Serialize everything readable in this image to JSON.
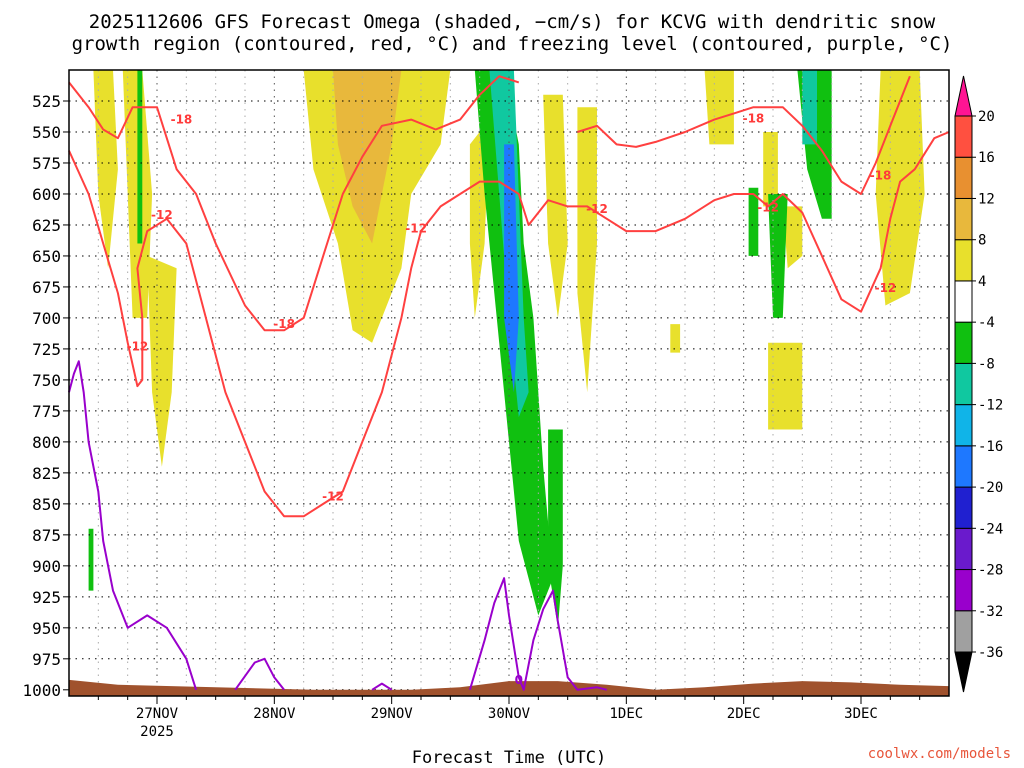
{
  "chart_data": {
    "type": "time-height cross section",
    "title_line1": "2025112606 GFS Forecast Omega (shaded, −cm/s) for KCVG with dendritic snow",
    "title_line2": "growth region (contoured, red, °C) and freezing level (contoured, purple, °C)",
    "xlabel": "Forecast Time (UTC)",
    "credit": "coolwx.com/models",
    "x_range_hours": [
      0,
      180
    ],
    "y_range_hpa": [
      500,
      1005
    ],
    "y_ticks": [
      525,
      550,
      575,
      600,
      625,
      650,
      675,
      700,
      725,
      750,
      775,
      800,
      825,
      850,
      875,
      900,
      925,
      950,
      975,
      1000
    ],
    "x_ticks": [
      {
        "hour": 18,
        "label": "27NOV",
        "sub": "2025"
      },
      {
        "hour": 42,
        "label": "28NOV",
        "sub": ""
      },
      {
        "hour": 66,
        "label": "29NOV",
        "sub": ""
      },
      {
        "hour": 90,
        "label": "30NOV",
        "sub": ""
      },
      {
        "hour": 114,
        "label": "1DEC",
        "sub": ""
      },
      {
        "hour": 138,
        "label": "2DEC",
        "sub": ""
      },
      {
        "hour": 162,
        "label": "3DEC",
        "sub": ""
      }
    ],
    "colorbar": {
      "levels": [
        -36,
        -32,
        -28,
        -24,
        -20,
        -16,
        -12,
        -8,
        -4,
        4,
        8,
        12,
        16,
        20
      ],
      "colors": [
        "#a0a0a0",
        "#9900cc",
        "#6a1acc",
        "#2020d0",
        "#1e78ff",
        "#10b4e8",
        "#10c8a0",
        "#10c010",
        "#ffffff",
        "#e8e02c",
        "#e8b83c",
        "#e89030",
        "#ff5040"
      ],
      "under_color": "#000000",
      "over_color": "#ff1493"
    },
    "dgz_red_contour_labels": [
      {
        "text": "-18",
        "hour": 23,
        "p": 540
      },
      {
        "text": "-12",
        "hour": 19,
        "p": 617
      },
      {
        "text": "-12",
        "hour": 14,
        "p": 723
      },
      {
        "text": "-18",
        "hour": 44,
        "p": 705
      },
      {
        "text": "-12",
        "hour": 71,
        "p": 628
      },
      {
        "text": "-12",
        "hour": 54,
        "p": 844
      },
      {
        "text": "-12",
        "hour": 108,
        "p": 612
      },
      {
        "text": "-18",
        "hour": 140,
        "p": 539
      },
      {
        "text": "-12",
        "hour": 143,
        "p": 611
      },
      {
        "text": "-18",
        "hour": 166,
        "p": 585
      },
      {
        "text": "-12",
        "hour": 167,
        "p": 676
      }
    ],
    "freezing_level_purple_labels": [
      {
        "text": "0",
        "hour": 92,
        "p": 992
      }
    ],
    "omega_shading": [
      {
        "name": "weak ascent",
        "value": 6,
        "regions": [
          [
            [
              5,
              500
            ],
            [
              9,
              500
            ],
            [
              10,
              580
            ],
            [
              8,
              660
            ],
            [
              6,
              600
            ]
          ],
          [
            [
              11,
              500
            ],
            [
              15,
              500
            ],
            [
              17,
              600
            ],
            [
              16,
              700
            ],
            [
              13,
              700
            ],
            [
              12,
              600
            ]
          ],
          [
            [
              16,
              650
            ],
            [
              22,
              660
            ],
            [
              21,
              760
            ],
            [
              19,
              820
            ],
            [
              17,
              760
            ]
          ],
          [
            [
              48,
              500
            ],
            [
              78,
              500
            ],
            [
              76,
              560
            ],
            [
              70,
              600
            ],
            [
              68,
              660
            ],
            [
              62,
              720
            ],
            [
              58,
              710
            ],
            [
              55,
              640
            ],
            [
              50,
              580
            ]
          ],
          [
            [
              82,
              560
            ],
            [
              86,
              540
            ],
            [
              85,
              640
            ],
            [
              83,
              700
            ],
            [
              82,
              640
            ]
          ],
          [
            [
              97,
              520
            ],
            [
              101,
              520
            ],
            [
              102,
              640
            ],
            [
              100,
              700
            ],
            [
              98,
              640
            ]
          ],
          [
            [
              104,
              530
            ],
            [
              108,
              530
            ],
            [
              108,
              640
            ],
            [
              106,
              760
            ],
            [
              104,
              680
            ]
          ],
          [
            [
              130,
              500
            ],
            [
              136,
              500
            ],
            [
              136,
              560
            ],
            [
              131,
              560
            ]
          ],
          [
            [
              142,
              550
            ],
            [
              145,
              550
            ],
            [
              145,
              610
            ],
            [
              142,
              610
            ]
          ],
          [
            [
              146,
              610
            ],
            [
              150,
              610
            ],
            [
              150,
              650
            ],
            [
              147,
              660
            ]
          ],
          [
            [
              123,
              705
            ],
            [
              125,
              705
            ],
            [
              125,
              728
            ],
            [
              123,
              728
            ]
          ],
          [
            [
              143,
              720
            ],
            [
              150,
              720
            ],
            [
              150,
              790
            ],
            [
              143,
              790
            ]
          ],
          [
            [
              166,
              500
            ],
            [
              174,
              500
            ],
            [
              175,
              600
            ],
            [
              172,
              680
            ],
            [
              167,
              690
            ],
            [
              165,
              600
            ]
          ]
        ]
      },
      {
        "name": "moderate ascent",
        "value": 10,
        "regions": [
          [
            [
              54,
              500
            ],
            [
              68,
              500
            ],
            [
              66,
              560
            ],
            [
              62,
              640
            ],
            [
              58,
              610
            ],
            [
              55,
              560
            ]
          ]
        ]
      },
      {
        "name": "weak descent",
        "value": -6,
        "regions": [
          [
            [
              14,
              500
            ],
            [
              15,
              500
            ],
            [
              15,
              640
            ],
            [
              14,
              640
            ]
          ],
          [
            [
              83,
              500
            ],
            [
              89,
              500
            ],
            [
              92,
              560
            ],
            [
              93,
              640
            ],
            [
              95,
              700
            ],
            [
              97,
              820
            ],
            [
              99,
              910
            ],
            [
              96,
              940
            ],
            [
              92,
              880
            ],
            [
              89,
              760
            ],
            [
              87,
              680
            ],
            [
              85,
              600
            ]
          ],
          [
            [
              98,
              790
            ],
            [
              101,
              790
            ],
            [
              101,
              900
            ],
            [
              100,
              950
            ],
            [
              98,
              900
            ]
          ],
          [
            [
              139,
              595
            ],
            [
              141,
              595
            ],
            [
              141,
              650
            ],
            [
              139,
              650
            ]
          ],
          [
            [
              143,
              600
            ],
            [
              147,
              600
            ],
            [
              146,
              700
            ],
            [
              144,
              700
            ]
          ],
          [
            [
              149,
              500
            ],
            [
              156,
              500
            ],
            [
              156,
              620
            ],
            [
              154,
              620
            ],
            [
              151,
              580
            ]
          ],
          [
            [
              4,
              870
            ],
            [
              5,
              870
            ],
            [
              5,
              920
            ],
            [
              4,
              920
            ]
          ]
        ]
      },
      {
        "name": "moderate descent",
        "value": -12,
        "regions": [
          [
            [
              86,
              500
            ],
            [
              91,
              500
            ],
            [
              92,
              600
            ],
            [
              93,
              700
            ],
            [
              94,
              760
            ],
            [
              92,
              780
            ],
            [
              90,
              700
            ],
            [
              88,
              600
            ]
          ],
          [
            [
              150,
              500
            ],
            [
              153,
              500
            ],
            [
              153,
              560
            ],
            [
              150,
              560
            ]
          ]
        ]
      },
      {
        "name": "stronger descent",
        "value": -18,
        "regions": [
          [
            [
              89,
              560
            ],
            [
              91,
              560
            ],
            [
              92,
              700
            ],
            [
              91,
              760
            ],
            [
              89,
              700
            ]
          ]
        ]
      }
    ],
    "dgz_red_contours": [
      [
        [
          0,
          510
        ],
        [
          4,
          530
        ],
        [
          7,
          548
        ],
        [
          10,
          555
        ],
        [
          13,
          530
        ],
        [
          18,
          530
        ],
        [
          22,
          580
        ],
        [
          26,
          600
        ],
        [
          30,
          640
        ],
        [
          36,
          690
        ],
        [
          40,
          710
        ],
        [
          44,
          710
        ],
        [
          48,
          700
        ],
        [
          52,
          650
        ],
        [
          56,
          600
        ],
        [
          60,
          570
        ],
        [
          64,
          545
        ],
        [
          70,
          540
        ],
        [
          75,
          548
        ],
        [
          80,
          540
        ],
        [
          84,
          520
        ],
        [
          88,
          505
        ],
        [
          92,
          510
        ]
      ],
      [
        [
          0,
          565
        ],
        [
          4,
          600
        ],
        [
          7,
          640
        ],
        [
          10,
          680
        ],
        [
          12,
          720
        ],
        [
          14,
          755
        ],
        [
          15,
          750
        ],
        [
          15,
          700
        ],
        [
          14,
          660
        ],
        [
          16,
          630
        ],
        [
          20,
          620
        ],
        [
          24,
          640
        ],
        [
          28,
          700
        ],
        [
          32,
          760
        ],
        [
          36,
          800
        ],
        [
          40,
          840
        ],
        [
          44,
          860
        ],
        [
          48,
          860
        ],
        [
          52,
          850
        ],
        [
          56,
          840
        ],
        [
          60,
          800
        ],
        [
          64,
          760
        ],
        [
          68,
          700
        ],
        [
          70,
          660
        ],
        [
          72,
          630
        ],
        [
          76,
          610
        ],
        [
          80,
          600
        ],
        [
          84,
          590
        ],
        [
          88,
          590
        ],
        [
          92,
          600
        ],
        [
          94,
          625
        ],
        [
          98,
          605
        ],
        [
          102,
          610
        ],
        [
          106,
          610
        ],
        [
          110,
          620
        ],
        [
          114,
          630
        ],
        [
          120,
          630
        ],
        [
          126,
          620
        ],
        [
          132,
          605
        ],
        [
          136,
          600
        ],
        [
          140,
          600
        ],
        [
          143,
          610
        ],
        [
          146,
          600
        ],
        [
          150,
          615
        ],
        [
          154,
          650
        ],
        [
          158,
          685
        ],
        [
          162,
          695
        ],
        [
          166,
          660
        ],
        [
          168,
          620
        ],
        [
          170,
          590
        ],
        [
          173,
          580
        ],
        [
          177,
          555
        ],
        [
          180,
          550
        ]
      ],
      [
        [
          104,
          550
        ],
        [
          108,
          545
        ],
        [
          112,
          560
        ],
        [
          116,
          562
        ],
        [
          120,
          558
        ],
        [
          126,
          550
        ],
        [
          132,
          540
        ],
        [
          136,
          535
        ],
        [
          140,
          530
        ],
        [
          146,
          530
        ],
        [
          150,
          545
        ],
        [
          154,
          565
        ],
        [
          158,
          590
        ],
        [
          162,
          600
        ],
        [
          165,
          575
        ],
        [
          168,
          545
        ],
        [
          170,
          525
        ],
        [
          172,
          505
        ]
      ]
    ],
    "freezing_level_contours": [
      [
        [
          0,
          760
        ],
        [
          1,
          745
        ],
        [
          2,
          735
        ],
        [
          3,
          760
        ],
        [
          4,
          800
        ],
        [
          6,
          840
        ],
        [
          7,
          880
        ],
        [
          9,
          920
        ],
        [
          12,
          950
        ],
        [
          16,
          940
        ],
        [
          20,
          950
        ],
        [
          24,
          975
        ],
        [
          26,
          1000
        ]
      ],
      [
        [
          34,
          1000
        ],
        [
          38,
          978
        ],
        [
          40,
          975
        ],
        [
          42,
          990
        ],
        [
          44,
          1000
        ]
      ],
      [
        [
          62,
          1000
        ],
        [
          64,
          995
        ],
        [
          66,
          1000
        ]
      ],
      [
        [
          82,
          1000
        ],
        [
          85,
          960
        ],
        [
          87,
          930
        ],
        [
          89,
          910
        ],
        [
          90,
          940
        ],
        [
          92,
          990
        ],
        [
          93,
          1000
        ],
        [
          95,
          960
        ],
        [
          97,
          935
        ],
        [
          99,
          920
        ],
        [
          100,
          945
        ],
        [
          102,
          990
        ],
        [
          104,
          1000
        ],
        [
          108,
          998
        ],
        [
          110,
          1000
        ]
      ]
    ],
    "terrain_surface": [
      [
        0,
        992
      ],
      [
        10,
        996
      ],
      [
        30,
        998
      ],
      [
        50,
        1000
      ],
      [
        70,
        1000
      ],
      [
        80,
        998
      ],
      [
        90,
        993
      ],
      [
        100,
        993
      ],
      [
        110,
        996
      ],
      [
        120,
        1000
      ],
      [
        130,
        998
      ],
      [
        140,
        995
      ],
      [
        150,
        993
      ],
      [
        160,
        994
      ],
      [
        170,
        996
      ],
      [
        180,
        997
      ]
    ]
  }
}
